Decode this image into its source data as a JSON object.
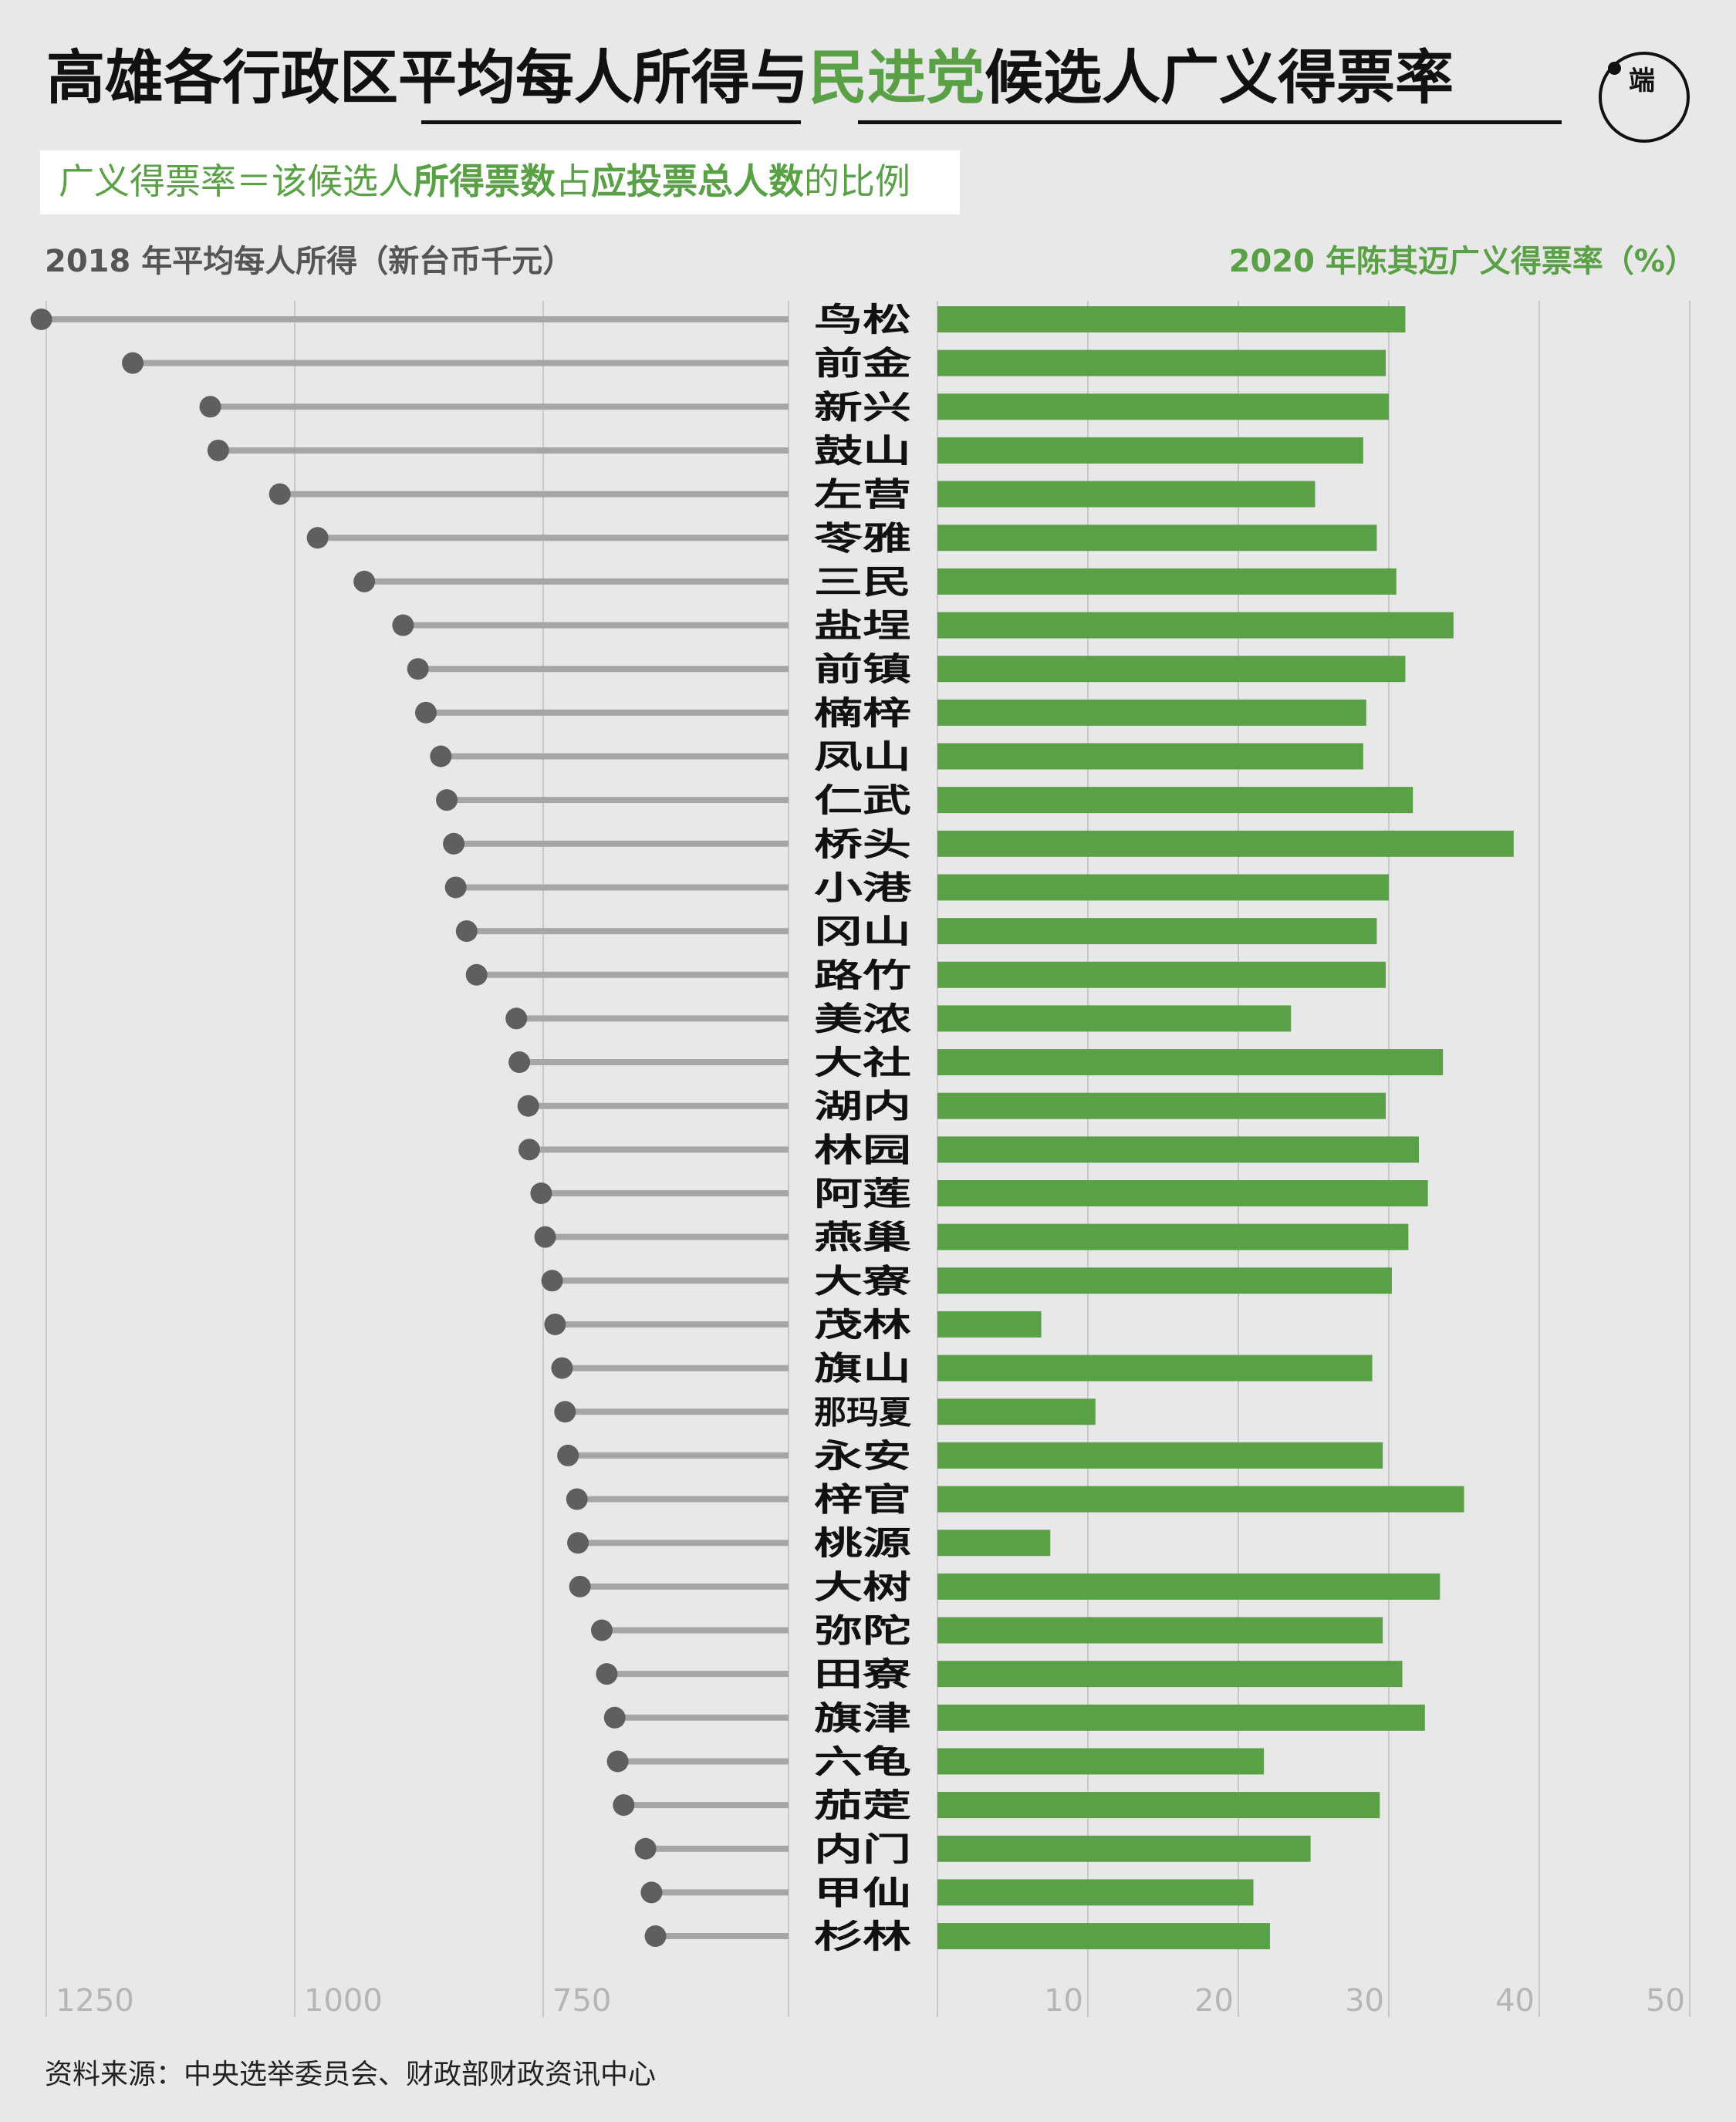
{
  "title": {
    "part1": "高雄各行政区",
    "part2": "平均每人所得",
    "part3": "与",
    "part4": "民进党",
    "part5": "候选人广义得票率"
  },
  "logo": {
    "glyph": "端"
  },
  "definition": {
    "part1": "广义得票率＝该候选人",
    "part2": "所得票数",
    "part3": "占",
    "part4": "应投票总人数",
    "part5": "的比例"
  },
  "left_header": "2018 年平均每人所得（新台币千元）",
  "right_header": "2020 年陈其迈广义得票率（%）",
  "source": "资料来源：中央选举委员会、财政部财政资讯中心",
  "colors": {
    "green": "#5aa046",
    "lollipop_line": "#a6a6a6",
    "lollipop_dot": "#5f5f5f",
    "grid": "#c8c8c8",
    "tick": "#b5b5b5",
    "background": "#e8e8e8"
  },
  "chart_data": [
    {
      "type": "bar",
      "orientation": "horizontal",
      "subtype": "lollipop",
      "axis_direction": "reversed",
      "xlabel": "2018 年平均每人所得（新台币千元）",
      "xlim": [
        500,
        1260
      ],
      "xticks": [
        "1250",
        "1000",
        "750"
      ],
      "tick_values": [
        1250,
        1000,
        750
      ],
      "categories": [
        "鸟　松",
        "前　金",
        "新　兴",
        "鼓　山",
        "左　营",
        "苓　雅",
        "三　民",
        "盐　埕",
        "前　镇",
        "楠　梓",
        "凤　山",
        "仁　武",
        "桥　头",
        "小　港",
        "冈　山",
        "路　竹",
        "美　浓",
        "大　社",
        "湖　内",
        "林　园",
        "阿　莲",
        "燕　巢",
        "大　寮",
        "茂　林",
        "旗　山",
        "那玛夏",
        "永　安",
        "梓　官",
        "桃　源",
        "大　树",
        "弥　陀",
        "田　寮",
        "旗　津",
        "六　龟",
        "茄　萣",
        "内　门",
        "甲　仙",
        "杉　林"
      ],
      "values": [
        1255,
        1163,
        1085,
        1077,
        1015,
        977,
        930,
        891,
        876,
        868,
        853,
        847,
        840,
        838,
        827,
        817,
        777,
        774,
        765,
        764,
        752,
        748,
        741,
        738,
        731,
        728,
        725,
        716,
        715,
        713,
        691,
        686,
        678,
        675,
        669,
        647,
        641,
        637
      ]
    },
    {
      "type": "bar",
      "orientation": "horizontal",
      "xlabel": "2020 年陈其迈广义得票率（%）",
      "xlim": [
        0,
        50
      ],
      "xticks": [
        "10",
        "20",
        "30",
        "40",
        "50"
      ],
      "tick_values": [
        10,
        20,
        30,
        40,
        50
      ],
      "categories": [
        "鸟　松",
        "前　金",
        "新　兴",
        "鼓　山",
        "左　营",
        "苓　雅",
        "三　民",
        "盐　埕",
        "前　镇",
        "楠　梓",
        "凤　山",
        "仁　武",
        "桥　头",
        "小　港",
        "冈　山",
        "路　竹",
        "美　浓",
        "大　社",
        "湖　内",
        "林　园",
        "阿　莲",
        "燕　巢",
        "大　寮",
        "茂　林",
        "旗　山",
        "那玛夏",
        "永　安",
        "梓　官",
        "桃　源",
        "大　树",
        "弥　陀",
        "田　寮",
        "旗　津",
        "六　龟",
        "茄　萣",
        "内　门",
        "甲　仙",
        "杉　林"
      ],
      "values": [
        31.1,
        29.8,
        30.0,
        28.3,
        25.1,
        29.2,
        30.5,
        34.3,
        31.1,
        28.5,
        28.3,
        31.6,
        38.3,
        30.0,
        29.2,
        29.8,
        23.5,
        33.6,
        29.8,
        32.0,
        32.6,
        31.3,
        30.2,
        6.9,
        28.9,
        10.5,
        29.6,
        35.0,
        7.5,
        33.4,
        29.6,
        30.9,
        32.4,
        21.7,
        29.4,
        24.8,
        21.0,
        22.1
      ]
    }
  ]
}
